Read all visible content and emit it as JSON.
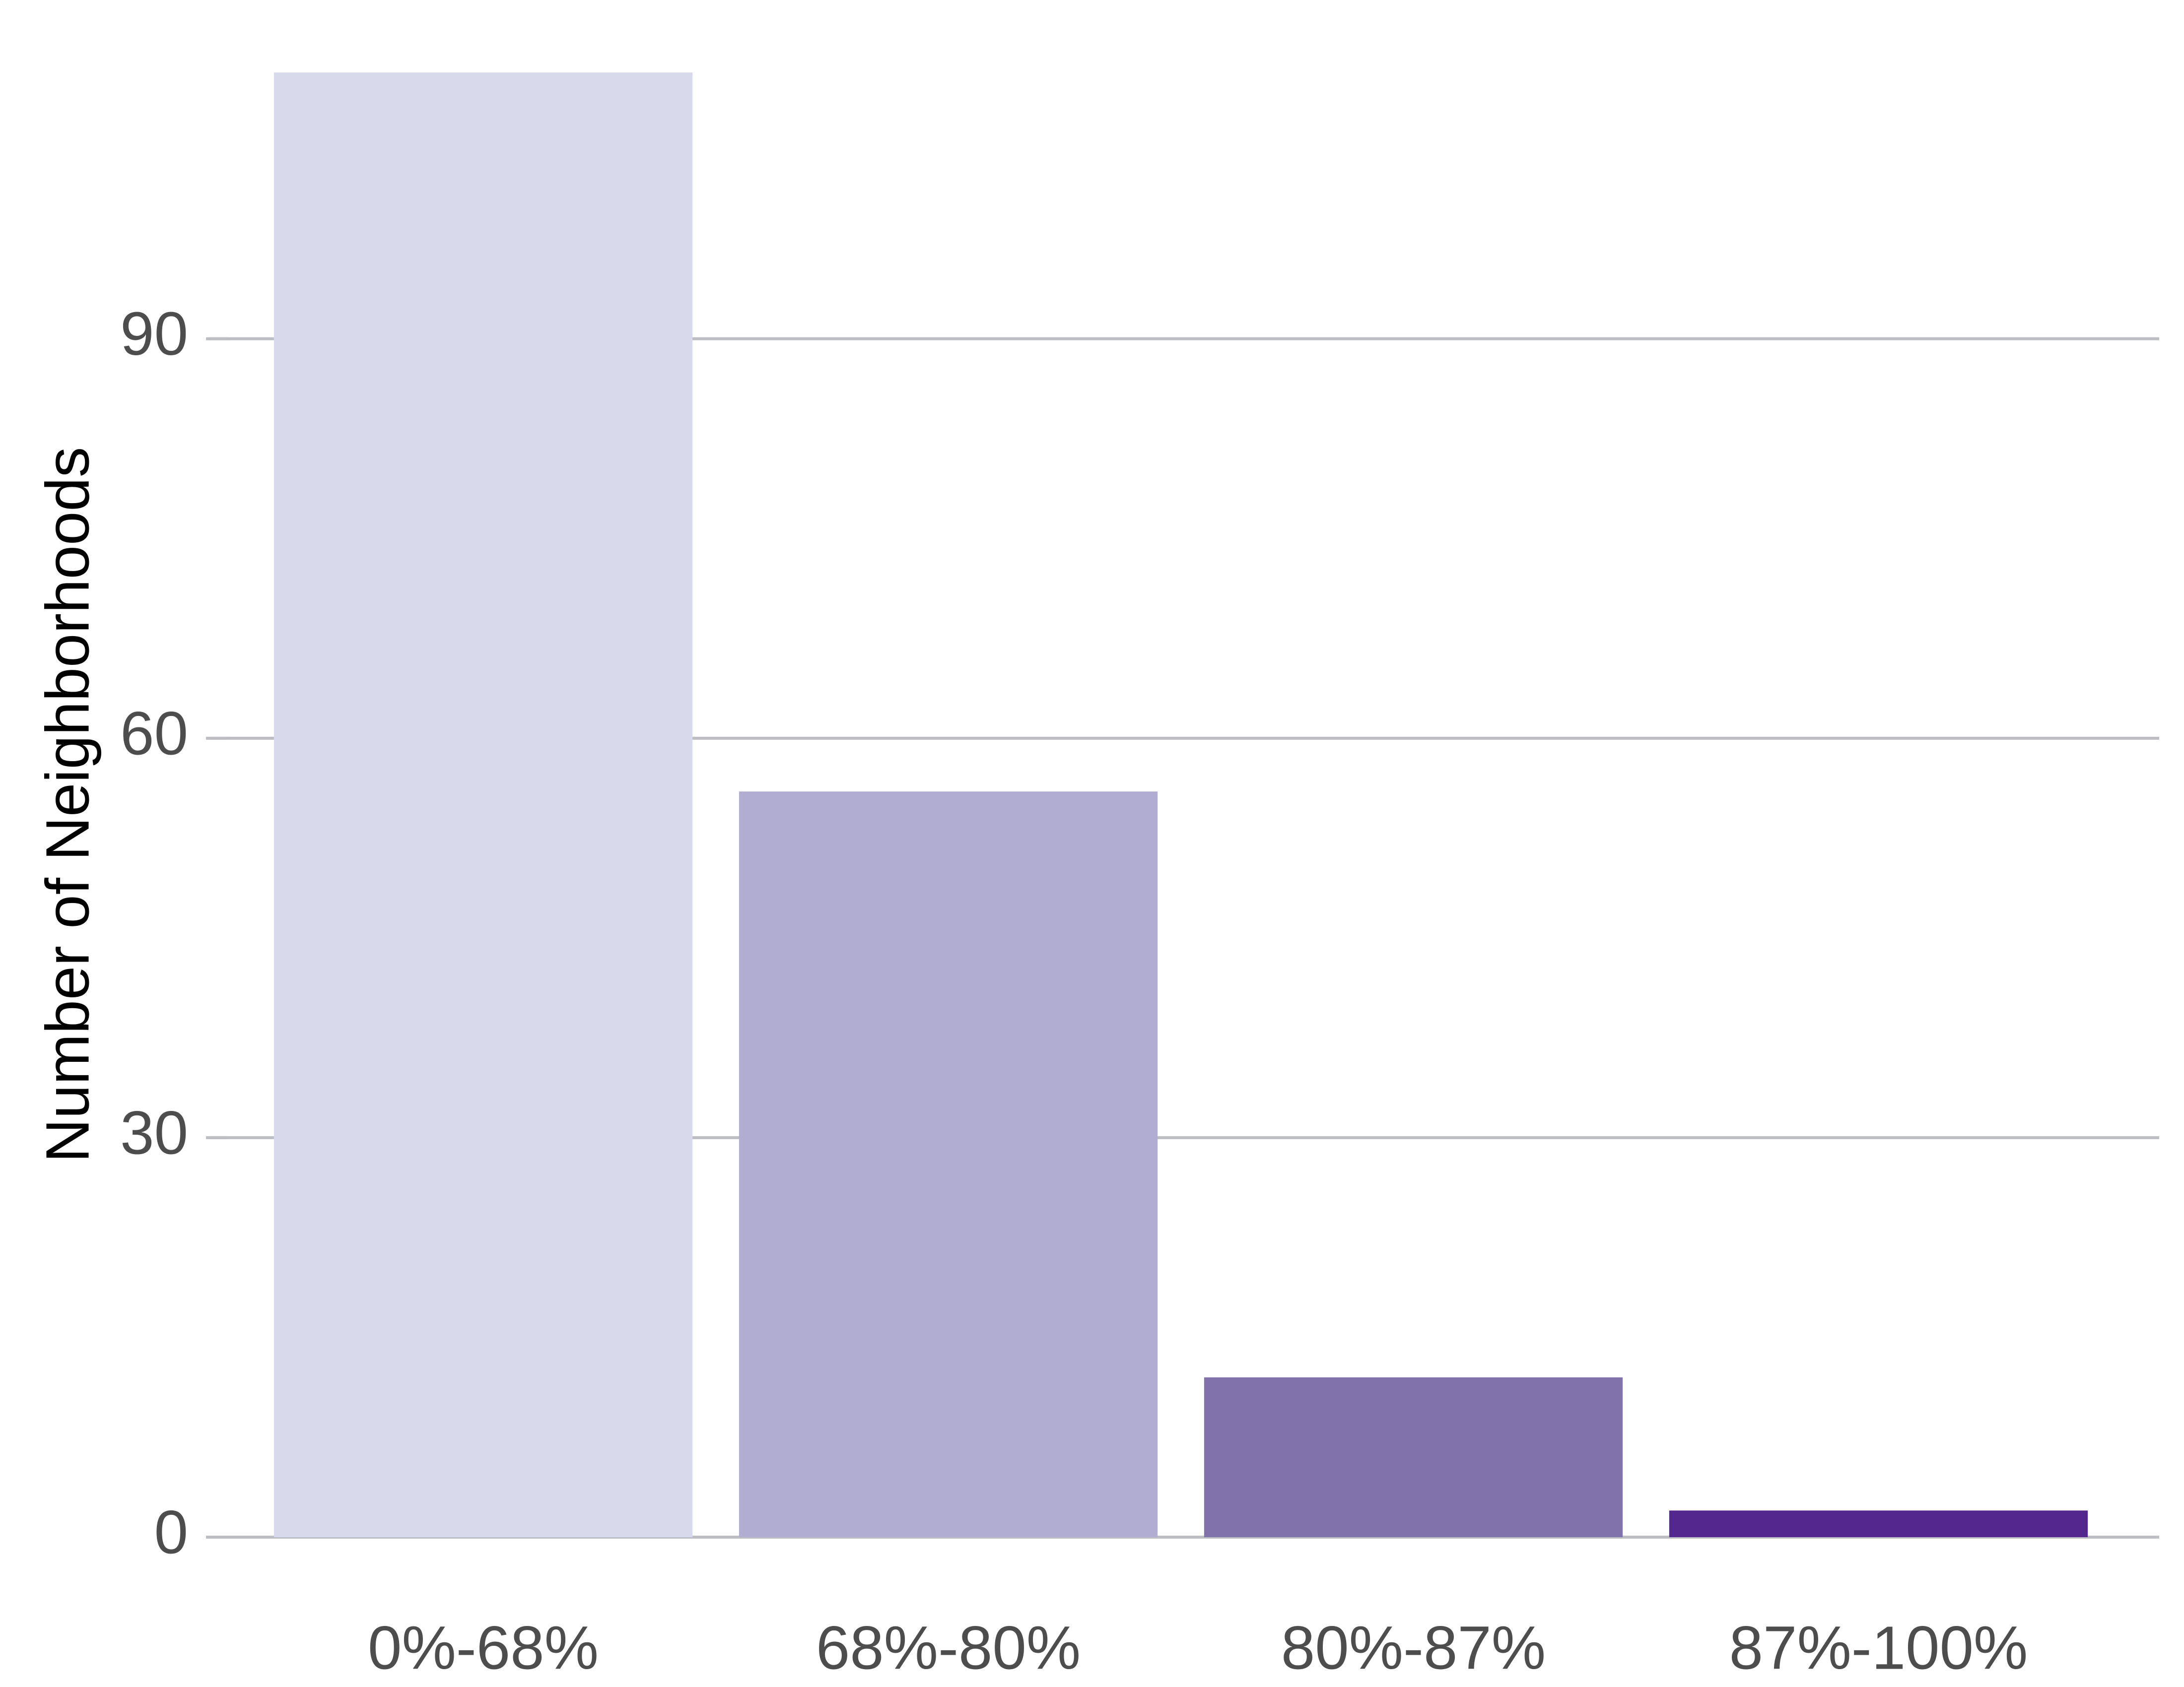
{
  "chart_data": {
    "type": "bar",
    "y_label": "Number of Neighborhoods",
    "categories": [
      "0%-68%",
      "68%-80%",
      "80%-87%",
      "87%-100%"
    ],
    "values": [
      110,
      56,
      12,
      2
    ],
    "colors": [
      "#d9d9ec",
      "#b1acd2",
      "#8073ab",
      "#54278f"
    ],
    "ylim": [
      0,
      110
    ],
    "yticks": [
      0,
      30,
      60,
      90
    ],
    "grid": true
  }
}
